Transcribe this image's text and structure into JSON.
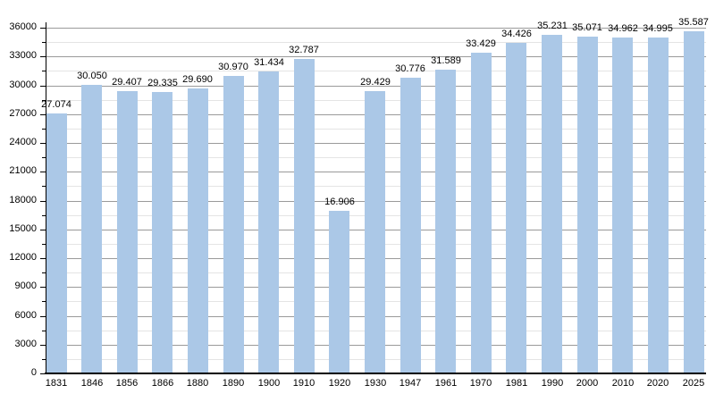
{
  "chart_data": {
    "type": "bar",
    "title": "",
    "xlabel": "",
    "ylabel": "",
    "categories": [
      "1831",
      "1846",
      "1856",
      "1866",
      "1880",
      "1890",
      "1900",
      "1910",
      "1920",
      "1930",
      "1947",
      "1961",
      "1970",
      "1981",
      "1990",
      "2000",
      "2010",
      "2020",
      "2025"
    ],
    "values": [
      27074,
      30050,
      29407,
      29335,
      29690,
      30970,
      31434,
      32787,
      16906,
      29429,
      30776,
      31589,
      33429,
      34426,
      35231,
      35071,
      34962,
      34995,
      35587
    ],
    "value_labels": [
      "27.074",
      "30.050",
      "29.407",
      "29.335",
      "29.690",
      "30.970",
      "31.434",
      "32.787",
      "16.906",
      "29.429",
      "30.776",
      "31.589",
      "33.429",
      "34.426",
      "35.231",
      "35.071",
      "34.962",
      "34.995",
      "35.587"
    ],
    "ylim": [
      0,
      36000
    ],
    "ytick_step": 3000,
    "yminor_step": 1500,
    "ytick_labels": [
      "0",
      "3000",
      "6000",
      "9000",
      "12000",
      "15000",
      "18000",
      "21000",
      "24000",
      "27000",
      "30000",
      "33000",
      "36000"
    ],
    "grid": "horizontal-major-and-minor",
    "legend": "none",
    "colors": {
      "bar_fill": "#abc8e7",
      "major_gridline": "#9a9a9a",
      "minor_gridline": "#e4e4e4",
      "axis": "#000000",
      "text": "#000000",
      "background": "#ffffff"
    }
  }
}
